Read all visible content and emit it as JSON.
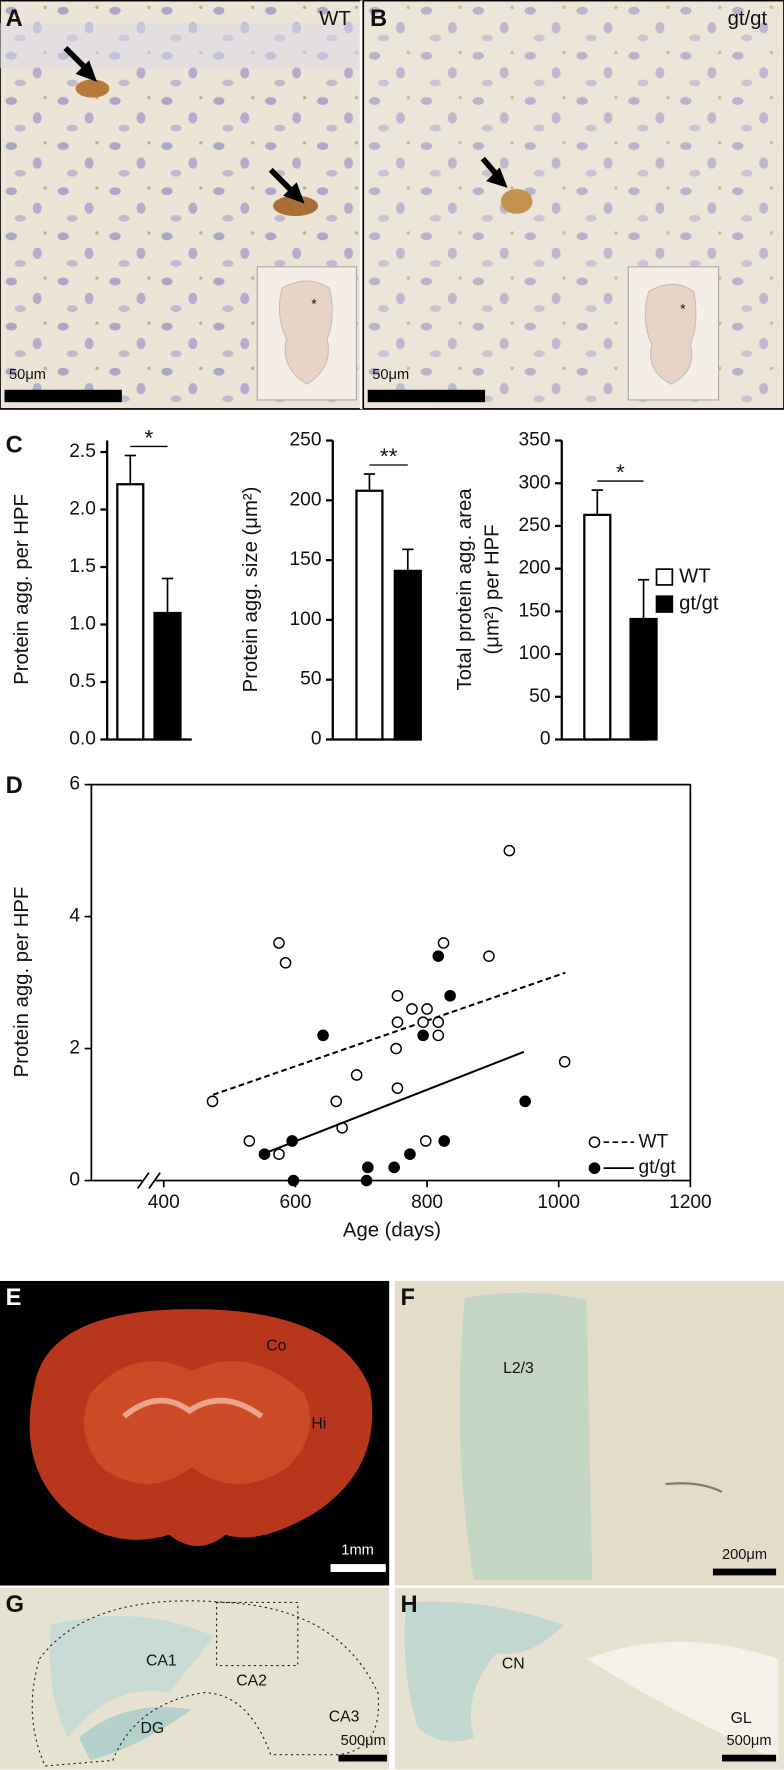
{
  "photo_panels": [
    {
      "label": "A",
      "tag": "WT",
      "scale_bar": "50μm",
      "inset_mark": "*"
    },
    {
      "label": "B",
      "tag": "gt/gt",
      "scale_bar": "50μm",
      "inset_mark": "*"
    },
    {
      "label": "E",
      "regions": [
        "Co",
        "Hi"
      ],
      "scale_bar": "1mm"
    },
    {
      "label": "F",
      "regions": [
        "L2/3"
      ],
      "scale_bar": "200μm"
    },
    {
      "label": "G",
      "regions": [
        "CA1",
        "CA2",
        "DG",
        "CA3"
      ],
      "scale_bar": "500μm"
    },
    {
      "label": "H",
      "regions": [
        "CN",
        "GL"
      ],
      "scale_bar": "500μm"
    }
  ],
  "chart_data": [
    {
      "type": "bar",
      "panel": "C",
      "ylabel": "Protein agg. per HPF",
      "ylim": [
        0,
        2.6
      ],
      "yticks": [
        {
          "value": 0,
          "label": "0.0"
        },
        0.5,
        {
          "value": 1,
          "label": "1.0"
        },
        1.5,
        {
          "value": 2,
          "label": "2.0"
        },
        2.5
      ],
      "series": [
        {
          "name": "WT",
          "color": "#ffffff",
          "values": [
            2.22
          ],
          "errors": [
            0.25
          ]
        },
        {
          "name": "gt/gt",
          "color": "#000000",
          "values": [
            1.1
          ],
          "errors": [
            0.3
          ]
        }
      ],
      "significance": "*"
    },
    {
      "type": "bar",
      "ylabel": "Protein agg. size (μm²)",
      "ylim": [
        0,
        250
      ],
      "yticks": [
        0,
        50,
        100,
        150,
        200,
        250
      ],
      "series": [
        {
          "name": "WT",
          "color": "#ffffff",
          "values": [
            208
          ],
          "errors": [
            14
          ]
        },
        {
          "name": "gt/gt",
          "color": "#000000",
          "values": [
            141
          ],
          "errors": [
            18
          ]
        }
      ],
      "significance": "**"
    },
    {
      "type": "bar",
      "ylabel": [
        "Total protein agg. area",
        "(μm²) per HPF"
      ],
      "ylim": [
        0,
        350
      ],
      "yticks": [
        0,
        50,
        100,
        150,
        200,
        250,
        300,
        350
      ],
      "series": [
        {
          "name": "WT",
          "color": "#ffffff",
          "values": [
            263
          ],
          "errors": [
            29
          ]
        },
        {
          "name": "gt/gt",
          "color": "#000000",
          "values": [
            141
          ],
          "errors": [
            46
          ]
        }
      ],
      "significance": "*"
    },
    {
      "type": "scatter",
      "panel": "D",
      "xlabel": "Age (days)",
      "ylabel": "Protein agg. per HPF",
      "xlim": [
        290,
        1200
      ],
      "ylim": [
        0,
        6
      ],
      "xticks": [
        400,
        600,
        800,
        1000,
        1200
      ],
      "yticks": [
        0,
        2,
        4,
        6
      ],
      "series": [
        {
          "name": "WT",
          "color": "#000000",
          "marker": "open",
          "line_style": "dashed",
          "x": [
            474,
            530,
            575,
            575,
            585,
            662,
            671,
            693,
            753,
            755,
            755,
            755,
            777,
            794,
            798,
            800,
            817,
            817,
            825,
            894,
            925,
            1009
          ],
          "values": [
            1.2,
            0.6,
            0.4,
            3.6,
            3.3,
            1.2,
            0.8,
            1.6,
            2.0,
            1.4,
            2.8,
            2.4,
            2.6,
            2.4,
            0.6,
            2.6,
            2.4,
            2.2,
            3.6,
            3.4,
            5.0,
            1.8
          ],
          "fit": {
            "x": [
              475,
              1010
            ],
            "values": [
              1.3,
              3.15
            ]
          }
        },
        {
          "name": "gt/gt",
          "color": "#000000",
          "marker": "filled",
          "line_style": "solid",
          "x": [
            553,
            595,
            597,
            642,
            708,
            710,
            750,
            774,
            794,
            817,
            826,
            835,
            949
          ],
          "values": [
            0.4,
            0.6,
            0,
            2.2,
            0,
            0.2,
            0.2,
            0.4,
            2.2,
            3.4,
            0.6,
            2.8,
            1.2
          ],
          "fit": {
            "x": [
              550,
              947
            ],
            "values": [
              0.4,
              1.95
            ]
          }
        }
      ]
    }
  ]
}
